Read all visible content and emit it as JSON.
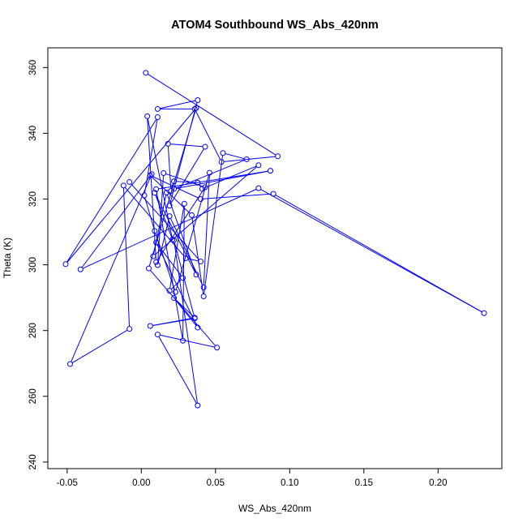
{
  "chart_data": {
    "type": "line",
    "style": "points-and-lines",
    "title": "ATOM4 Southbound WS_Abs_420nm",
    "xlabel": "WS_Abs_420nm",
    "ylabel": "Theta (K)",
    "xlim": [
      -0.063,
      0.243
    ],
    "ylim": [
      238,
      366
    ],
    "xticks": [
      -0.05,
      0.0,
      0.05,
      0.1,
      0.15,
      0.2
    ],
    "xtick_labels": [
      "-0.05",
      "0.00",
      "0.05",
      "0.10",
      "0.15",
      "0.20"
    ],
    "yticks": [
      240,
      260,
      280,
      300,
      320,
      340,
      360
    ],
    "ytick_labels": [
      "240",
      "260",
      "280",
      "300",
      "320",
      "340",
      "360"
    ],
    "grid": false,
    "color": "#0000ff",
    "series": [
      {
        "points": [
          [
            0.003,
            358.4
          ],
          [
            0.092,
            333.0
          ],
          [
            0.054,
            331.3
          ],
          [
            0.036,
            347.4
          ],
          [
            0.011,
            347.4
          ],
          [
            0.038,
            350.1
          ],
          [
            0.019,
            318.0
          ],
          [
            0.043,
            335.9
          ],
          [
            0.018,
            336.8
          ],
          [
            0.02,
            322.5
          ],
          [
            0.022,
            325.4
          ],
          [
            0.038,
            325.0
          ],
          [
            0.041,
            323.1
          ],
          [
            0.079,
            330.3
          ],
          [
            0.008,
            302.6
          ],
          [
            0.017,
            322.0
          ],
          [
            0.037,
            297.0
          ],
          [
            0.009,
            321.9
          ],
          [
            0.021,
            307.7
          ],
          [
            0.004,
            345.2
          ],
          [
            0.01,
            300.8
          ],
          [
            0.043,
            323.6
          ],
          [
            0.015,
            327.9
          ],
          [
            0.011,
            299.9
          ],
          [
            0.019,
            314.8
          ],
          [
            0.042,
            293.1
          ],
          [
            0.046,
            328.0
          ],
          [
            0.023,
            291.7
          ],
          [
            0.009,
            310.3
          ],
          [
            0.002,
            321.1
          ],
          [
            0.011,
            344.9
          ],
          [
            -0.051,
            300.2
          ],
          [
            0.037,
            347.7
          ],
          [
            0.005,
            298.9
          ],
          [
            0.051,
            274.8
          ],
          [
            0.011,
            278.8
          ],
          [
            0.038,
            257.2
          ],
          [
            0.022,
            307.5
          ],
          [
            0.036,
            283.7
          ],
          [
            0.006,
            281.4
          ],
          [
            0.036,
            283.9
          ],
          [
            0.022,
            289.9
          ],
          [
            0.038,
            280.9
          ],
          [
            0.01,
            306.8
          ],
          [
            0.028,
            296.0
          ],
          [
            0.019,
            292.1
          ],
          [
            0.029,
            318.6
          ],
          [
            0.028,
            276.9
          ],
          [
            0.01,
            323.0
          ],
          [
            0.087,
            328.6
          ],
          [
            0.022,
            323.1
          ],
          [
            0.071,
            332.1
          ],
          [
            0.055,
            334.0
          ],
          [
            0.042,
            290.4
          ],
          [
            0.034,
            315.1
          ],
          [
            0.006,
            327.2
          ],
          [
            0.04,
            320.0
          ],
          [
            0.089,
            321.6
          ],
          [
            0.231,
            285.3
          ],
          [
            0.079,
            323.3
          ],
          [
            -0.041,
            298.6
          ],
          [
            0.007,
            327.6
          ],
          [
            -0.048,
            269.8
          ],
          [
            -0.008,
            280.5
          ],
          [
            -0.012,
            324.1
          ],
          [
            0.03,
            302.0
          ],
          [
            0.04,
            301.0
          ],
          [
            -0.008,
            325.2
          ]
        ]
      }
    ]
  }
}
